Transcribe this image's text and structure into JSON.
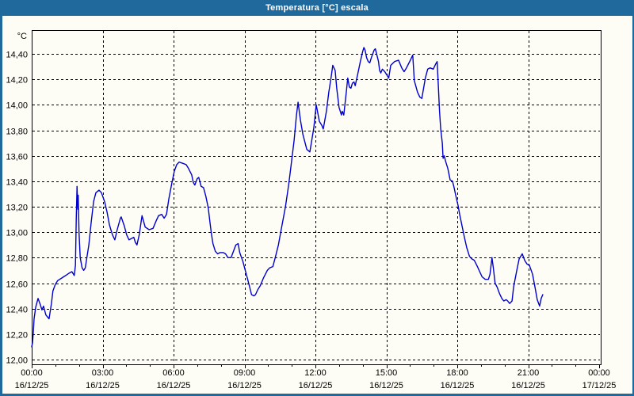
{
  "window": {
    "title": "Temperatura [°C] escala"
  },
  "colors": {
    "titlebar_bg": "#1F699C",
    "window_border": "#1F699C",
    "title_text": "#FFFFFF",
    "background": "#FDFDF6",
    "line": "#0000CC",
    "grid": "#000000",
    "frame": "#000000",
    "text": "#000000"
  },
  "chart_data": {
    "type": "line",
    "title": "Temperatura [°C] escala",
    "grid": "dashed",
    "legend": "none",
    "y_axis": {
      "unit_label": "°C",
      "min": 12.0,
      "max": 14.4,
      "step": 0.2,
      "tick_labels": [
        "14,40",
        "14,20",
        "14,00",
        "13,80",
        "13,60",
        "13,40",
        "13,20",
        "13,00",
        "12,80",
        "12,60",
        "12,40",
        "12,20",
        "12,00"
      ]
    },
    "x_axis": {
      "range_hours": [
        0,
        24
      ],
      "major_tick_hours": 3,
      "minor_tick_hours": 1,
      "tick_labels": [
        {
          "time": "00:00",
          "date": "16/12/25"
        },
        {
          "time": "03:00",
          "date": "16/12/25"
        },
        {
          "time": "06:00",
          "date": "16/12/25"
        },
        {
          "time": "09:00",
          "date": "16/12/25"
        },
        {
          "time": "12:00",
          "date": "16/12/25"
        },
        {
          "time": "15:00",
          "date": "16/12/25"
        },
        {
          "time": "18:00",
          "date": "16/12/25"
        },
        {
          "time": "21:00",
          "date": "16/12/25"
        },
        {
          "time": "00:00",
          "date": "17/12/25"
        }
      ]
    },
    "series": [
      {
        "name": "Temperatura",
        "color": "#0000CC",
        "points_minutes_temp": [
          [
            0,
            12.1
          ],
          [
            2,
            12.13
          ],
          [
            4,
            12.21
          ],
          [
            6,
            12.32
          ],
          [
            10,
            12.41
          ],
          [
            16,
            12.48
          ],
          [
            22,
            12.43
          ],
          [
            26,
            12.39
          ],
          [
            30,
            12.42
          ],
          [
            36,
            12.35
          ],
          [
            44,
            12.32
          ],
          [
            50,
            12.44
          ],
          [
            54,
            12.54
          ],
          [
            60,
            12.59
          ],
          [
            66,
            12.62
          ],
          [
            76,
            12.64
          ],
          [
            86,
            12.66
          ],
          [
            96,
            12.68
          ],
          [
            102,
            12.69
          ],
          [
            108,
            12.66
          ],
          [
            111,
            12.74
          ],
          [
            113,
            13.1
          ],
          [
            115,
            13.36
          ],
          [
            117,
            13.18
          ],
          [
            118,
            13.29
          ],
          [
            120,
            13.0
          ],
          [
            123,
            12.8
          ],
          [
            128,
            12.72
          ],
          [
            132,
            12.7
          ],
          [
            136,
            12.72
          ],
          [
            140,
            12.8
          ],
          [
            145,
            12.9
          ],
          [
            151,
            13.08
          ],
          [
            157,
            13.24
          ],
          [
            163,
            13.31
          ],
          [
            171,
            13.33
          ],
          [
            177,
            13.31
          ],
          [
            185,
            13.24
          ],
          [
            191,
            13.16
          ],
          [
            197,
            13.06
          ],
          [
            201,
            13.02
          ],
          [
            205,
            12.98
          ],
          [
            211,
            12.94
          ],
          [
            217,
            13.02
          ],
          [
            225,
            13.11
          ],
          [
            227,
            13.12
          ],
          [
            235,
            13.05
          ],
          [
            241,
            12.98
          ],
          [
            247,
            12.94
          ],
          [
            253,
            12.95
          ],
          [
            259,
            12.96
          ],
          [
            263,
            12.92
          ],
          [
            267,
            12.9
          ],
          [
            273,
            12.98
          ],
          [
            280,
            13.13
          ],
          [
            288,
            13.04
          ],
          [
            298,
            13.02
          ],
          [
            308,
            13.03
          ],
          [
            316,
            13.09
          ],
          [
            322,
            13.13
          ],
          [
            330,
            13.14
          ],
          [
            336,
            13.11
          ],
          [
            342,
            13.14
          ],
          [
            348,
            13.26
          ],
          [
            356,
            13.39
          ],
          [
            362,
            13.48
          ],
          [
            368,
            13.53
          ],
          [
            374,
            13.55
          ],
          [
            384,
            13.54
          ],
          [
            392,
            13.53
          ],
          [
            398,
            13.5
          ],
          [
            406,
            13.45
          ],
          [
            410,
            13.39
          ],
          [
            414,
            13.37
          ],
          [
            420,
            13.42
          ],
          [
            424,
            13.43
          ],
          [
            430,
            13.36
          ],
          [
            436,
            13.35
          ],
          [
            442,
            13.28
          ],
          [
            448,
            13.19
          ],
          [
            452,
            13.09
          ],
          [
            456,
            12.99
          ],
          [
            460,
            12.91
          ],
          [
            466,
            12.85
          ],
          [
            472,
            12.83
          ],
          [
            478,
            12.84
          ],
          [
            486,
            12.84
          ],
          [
            492,
            12.83
          ],
          [
            498,
            12.8
          ],
          [
            506,
            12.8
          ],
          [
            512,
            12.85
          ],
          [
            518,
            12.9
          ],
          [
            524,
            12.91
          ],
          [
            528,
            12.84
          ],
          [
            536,
            12.77
          ],
          [
            542,
            12.7
          ],
          [
            548,
            12.63
          ],
          [
            553,
            12.57
          ],
          [
            558,
            12.51
          ],
          [
            564,
            12.5
          ],
          [
            568,
            12.51
          ],
          [
            574,
            12.55
          ],
          [
            580,
            12.58
          ],
          [
            588,
            12.64
          ],
          [
            598,
            12.7
          ],
          [
            604,
            12.72
          ],
          [
            612,
            12.73
          ],
          [
            618,
            12.8
          ],
          [
            626,
            12.9
          ],
          [
            632,
            13.0
          ],
          [
            638,
            13.1
          ],
          [
            644,
            13.2
          ],
          [
            652,
            13.37
          ],
          [
            658,
            13.52
          ],
          [
            666,
            13.72
          ],
          [
            672,
            13.92
          ],
          [
            676,
            14.02
          ],
          [
            682,
            13.88
          ],
          [
            688,
            13.77
          ],
          [
            698,
            13.65
          ],
          [
            706,
            13.63
          ],
          [
            716,
            13.82
          ],
          [
            722,
            14.0
          ],
          [
            730,
            13.87
          ],
          [
            736,
            13.84
          ],
          [
            740,
            13.81
          ],
          [
            748,
            13.95
          ],
          [
            754,
            14.1
          ],
          [
            760,
            14.22
          ],
          [
            764,
            14.31
          ],
          [
            770,
            14.27
          ],
          [
            774,
            14.13
          ],
          [
            780,
            13.98
          ],
          [
            786,
            13.92
          ],
          [
            788,
            13.95
          ],
          [
            792,
            13.92
          ],
          [
            798,
            14.09
          ],
          [
            802,
            14.21
          ],
          [
            806,
            14.14
          ],
          [
            810,
            14.13
          ],
          [
            814,
            14.17
          ],
          [
            818,
            14.18
          ],
          [
            821,
            14.15
          ],
          [
            828,
            14.25
          ],
          [
            834,
            14.34
          ],
          [
            840,
            14.42
          ],
          [
            843,
            14.45
          ],
          [
            846,
            14.43
          ],
          [
            850,
            14.37
          ],
          [
            854,
            14.34
          ],
          [
            858,
            14.33
          ],
          [
            862,
            14.37
          ],
          [
            869,
            14.43
          ],
          [
            872,
            14.44
          ],
          [
            880,
            14.34
          ],
          [
            883,
            14.27
          ],
          [
            886,
            14.25
          ],
          [
            890,
            14.28
          ],
          [
            896,
            14.26
          ],
          [
            902,
            14.23
          ],
          [
            906,
            14.21
          ],
          [
            911,
            14.31
          ],
          [
            921,
            14.34
          ],
          [
            931,
            14.35
          ],
          [
            939,
            14.29
          ],
          [
            945,
            14.26
          ],
          [
            951,
            14.29
          ],
          [
            961,
            14.35
          ],
          [
            967,
            14.39
          ],
          [
            971,
            14.19
          ],
          [
            979,
            14.1
          ],
          [
            985,
            14.06
          ],
          [
            990,
            14.05
          ],
          [
            999,
            14.21
          ],
          [
            1005,
            14.28
          ],
          [
            1011,
            14.29
          ],
          [
            1019,
            14.28
          ],
          [
            1025,
            14.32
          ],
          [
            1029,
            14.34
          ],
          [
            1032,
            14.15
          ],
          [
            1035,
            13.95
          ],
          [
            1038,
            13.81
          ],
          [
            1042,
            13.7
          ],
          [
            1044,
            13.58
          ],
          [
            1047,
            13.6
          ],
          [
            1050,
            13.56
          ],
          [
            1056,
            13.5
          ],
          [
            1062,
            13.41
          ],
          [
            1068,
            13.4
          ],
          [
            1072,
            13.35
          ],
          [
            1076,
            13.29
          ],
          [
            1082,
            13.21
          ],
          [
            1086,
            13.14
          ],
          [
            1090,
            13.08
          ],
          [
            1094,
            13.02
          ],
          [
            1098,
            12.96
          ],
          [
            1104,
            12.88
          ],
          [
            1111,
            12.81
          ],
          [
            1117,
            12.79
          ],
          [
            1123,
            12.78
          ],
          [
            1131,
            12.73
          ],
          [
            1137,
            12.69
          ],
          [
            1143,
            12.65
          ],
          [
            1151,
            12.63
          ],
          [
            1159,
            12.63
          ],
          [
            1163,
            12.67
          ],
          [
            1168,
            12.8
          ],
          [
            1172,
            12.71
          ],
          [
            1176,
            12.6
          ],
          [
            1181,
            12.57
          ],
          [
            1187,
            12.52
          ],
          [
            1193,
            12.48
          ],
          [
            1198,
            12.46
          ],
          [
            1204,
            12.47
          ],
          [
            1208,
            12.46
          ],
          [
            1213,
            12.44
          ],
          [
            1219,
            12.46
          ],
          [
            1223,
            12.57
          ],
          [
            1231,
            12.7
          ],
          [
            1237,
            12.79
          ],
          [
            1245,
            12.83
          ],
          [
            1251,
            12.78
          ],
          [
            1257,
            12.75
          ],
          [
            1263,
            12.74
          ],
          [
            1271,
            12.67
          ],
          [
            1277,
            12.57
          ],
          [
            1283,
            12.47
          ],
          [
            1289,
            12.42
          ],
          [
            1293,
            12.48
          ],
          [
            1297,
            12.51
          ]
        ]
      }
    ]
  }
}
